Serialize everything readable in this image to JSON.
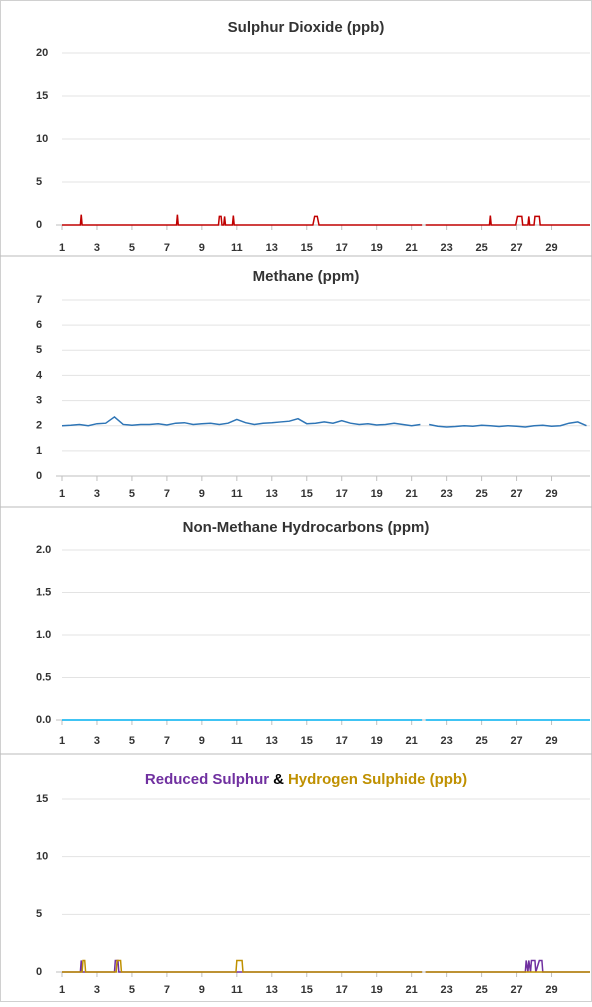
{
  "chart_data": [
    {
      "type": "line",
      "title": "Sulphur Dioxide (ppb)",
      "title_color": "#9c3d0a",
      "xlim": [
        1,
        31.2
      ],
      "xticks": [
        1,
        3,
        5,
        7,
        9,
        11,
        13,
        15,
        17,
        19,
        21,
        23,
        25,
        27,
        29
      ],
      "ylim": [
        0,
        20
      ],
      "yticks": [
        0,
        5,
        10,
        15,
        20
      ],
      "grid": true,
      "series": [
        {
          "color": "#c00000",
          "x": [
            1,
            2.05,
            2.1,
            2.15,
            7.55,
            7.6,
            7.65,
            9.95,
            10.0,
            10.1,
            10.15,
            10.25,
            10.3,
            10.35,
            10.75,
            10.8,
            10.85,
            15.35,
            15.45,
            15.6,
            15.7,
            21.6,
            21.7,
            21.8,
            25.45,
            25.5,
            25.55,
            26.95,
            27.05,
            27.3,
            27.35,
            27.65,
            27.7,
            27.75,
            28.0,
            28.05,
            28.3,
            28.35,
            31.2
          ],
          "values": [
            0,
            0,
            1.2,
            0,
            0,
            1.2,
            0,
            0,
            1,
            1,
            0,
            0,
            1,
            0,
            0,
            1.1,
            0,
            0,
            1,
            1,
            0,
            0,
            null,
            0,
            0,
            1.1,
            0,
            0,
            1,
            1,
            0,
            0,
            1,
            0,
            0,
            1,
            1,
            0,
            0
          ]
        }
      ]
    },
    {
      "type": "line",
      "title": "Methane (ppm)",
      "title_color": "#1f6fbd",
      "xlim": [
        1,
        31.2
      ],
      "xticks": [
        1,
        3,
        5,
        7,
        9,
        11,
        13,
        15,
        17,
        19,
        21,
        23,
        25,
        27,
        29
      ],
      "ylim": [
        0,
        7
      ],
      "yticks": [
        0,
        1,
        2,
        3,
        4,
        5,
        6,
        7
      ],
      "grid": true,
      "series": [
        {
          "color": "#2e75b6",
          "x": [
            1,
            1.5,
            2,
            2.5,
            3,
            3.5,
            4,
            4.5,
            5,
            5.5,
            6,
            6.5,
            7,
            7.5,
            8,
            8.5,
            9,
            9.5,
            10,
            10.5,
            11,
            11.5,
            12,
            12.5,
            13,
            13.5,
            14,
            14.5,
            15,
            15.5,
            16,
            16.5,
            17,
            17.5,
            18,
            18.5,
            19,
            19.5,
            20,
            20.5,
            21,
            21.5,
            21.7,
            22,
            22.5,
            23,
            23.5,
            24,
            24.5,
            25,
            25.5,
            26,
            26.5,
            27,
            27.5,
            28,
            28.5,
            29,
            29.5,
            30,
            30.5,
            31
          ],
          "values": [
            2.0,
            2.02,
            2.05,
            2.0,
            2.08,
            2.1,
            2.35,
            2.05,
            2.02,
            2.05,
            2.05,
            2.08,
            2.03,
            2.1,
            2.12,
            2.05,
            2.08,
            2.1,
            2.05,
            2.1,
            2.25,
            2.12,
            2.05,
            2.1,
            2.12,
            2.15,
            2.18,
            2.28,
            2.08,
            2.1,
            2.15,
            2.1,
            2.2,
            2.1,
            2.05,
            2.08,
            2.03,
            2.05,
            2.1,
            2.05,
            2.0,
            2.05,
            null,
            2.05,
            1.98,
            1.95,
            1.97,
            2.0,
            1.98,
            2.02,
            2.0,
            1.97,
            2.0,
            1.98,
            1.95,
            2.0,
            2.02,
            1.98,
            2.0,
            2.1,
            2.15,
            2.0
          ]
        }
      ]
    },
    {
      "type": "line",
      "title": "Non-Methane Hydrocarbons (ppm)",
      "title_color": "#1ec0ea",
      "xlim": [
        1,
        31.2
      ],
      "xticks": [
        1,
        3,
        5,
        7,
        9,
        11,
        13,
        15,
        17,
        19,
        21,
        23,
        25,
        27,
        29
      ],
      "ylim": [
        0,
        2
      ],
      "yticks": [
        {
          "value": 0,
          "label": "0.0"
        },
        {
          "value": 0.5,
          "label": "0.5"
        },
        {
          "value": 1,
          "label": "1.0"
        },
        {
          "value": 1.5,
          "label": "1.5"
        },
        {
          "value": 2,
          "label": "2.0"
        }
      ],
      "grid": true,
      "series": [
        {
          "color": "#00b0f0",
          "x": [
            1,
            21.6,
            21.7,
            21.8,
            31.2
          ],
          "values": [
            0,
            0,
            null,
            0,
            0
          ]
        }
      ]
    },
    {
      "type": "line",
      "title": [
        {
          "text": "Reduced Sulphur",
          "color": "#7030a0"
        },
        {
          "text": "&",
          "color": "#000000"
        },
        {
          "text": "Hydrogen Sulphide (ppb)",
          "color": "#bf9000"
        }
      ],
      "xlim": [
        1,
        31.2
      ],
      "xticks": [
        1,
        3,
        5,
        7,
        9,
        11,
        13,
        15,
        17,
        19,
        21,
        23,
        25,
        27,
        29
      ],
      "ylim": [
        0,
        15
      ],
      "yticks": [
        0,
        5,
        10,
        15
      ],
      "grid": true,
      "series": [
        {
          "color": "#7030a0",
          "x": [
            1,
            2.05,
            2.1,
            2.15,
            4.0,
            4.05,
            4.2,
            4.25,
            21.6,
            21.7,
            21.8,
            27.5,
            27.55,
            27.65,
            27.7,
            27.8,
            27.85,
            28.05,
            28.1,
            28.3,
            28.45,
            28.5,
            31.2
          ],
          "values": [
            0,
            0,
            1,
            0,
            0,
            1,
            1,
            0,
            0,
            null,
            0,
            0,
            1,
            0,
            1,
            0,
            1,
            1,
            0,
            1,
            1,
            0,
            0
          ]
        },
        {
          "color": "#bf9000",
          "x": [
            1,
            2.15,
            2.2,
            2.3,
            2.35,
            4.1,
            4.15,
            4.35,
            4.4,
            10.95,
            11.0,
            11.3,
            11.35,
            21.6,
            21.7,
            21.8,
            31.2
          ],
          "values": [
            0,
            0,
            1,
            1,
            0,
            0,
            1,
            1,
            0,
            0,
            1,
            1,
            0,
            0,
            null,
            0,
            0
          ]
        }
      ]
    }
  ]
}
